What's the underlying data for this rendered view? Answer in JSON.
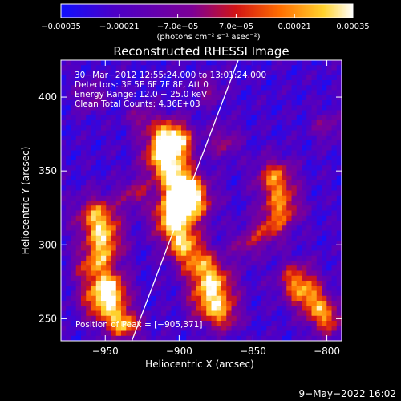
{
  "chart_data": {
    "type": "heatmap",
    "title": "Reconstructed RHESSI Image",
    "xlabel": "Heliocentric X (arcsec)",
    "ylabel": "Heliocentric Y (arcsec)",
    "xlim": [
      -980,
      -790
    ],
    "ylim": [
      235,
      425
    ],
    "xticks": [
      -950,
      -900,
      -850,
      -800
    ],
    "xtick_labels": [
      "−950",
      "−900",
      "−850",
      "−800"
    ],
    "yticks": [
      250,
      300,
      350,
      400
    ],
    "ytick_labels": [
      "250",
      "300",
      "350",
      "400"
    ],
    "colorbar": {
      "range": [
        -0.00035,
        0.00035
      ],
      "ticks": [
        -0.00035,
        -0.00021,
        -7e-05,
        7e-05,
        0.00021,
        0.00035
      ],
      "tick_labels": [
        "−0.00035",
        "−0.00021",
        "−7.0e−05",
        "7.0e−05",
        "0.00021",
        "0.00035"
      ],
      "unit_label": "(photons cm⁻² s⁻¹ asec⁻²)",
      "colors": [
        "#1010ff",
        "#4b00c8",
        "#7d0096",
        "#d21414",
        "#ff6e00",
        "#ffd22d",
        "#ffffff"
      ]
    },
    "info_lines": [
      "30−Mar−2012 12:55:24.000 to 13:01:24.000",
      "Detectors: 3F 5F 6F 7F 8F, Att 0",
      "Energy Range: 12.0 − 25.0 keV",
      "Clean    Total Counts: 4.36E+03"
    ],
    "peak_label": "Position of Peak = [−905,371]",
    "limb_line": {
      "x": [
        -932,
        -860
      ],
      "y": [
        235,
        425
      ]
    },
    "peak": {
      "x": -905,
      "y": 371
    }
  },
  "footer_date": "9−May−2022 16:02"
}
